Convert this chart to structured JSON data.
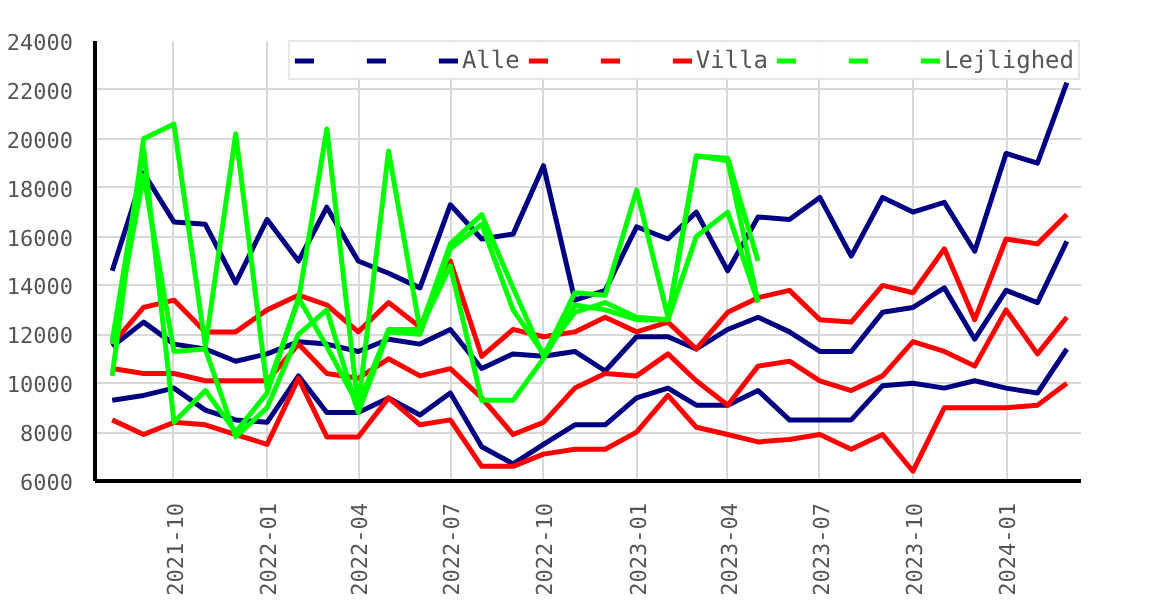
{
  "chart_data": {
    "type": "line",
    "x": [
      "2021-08",
      "2021-09",
      "2021-10",
      "2021-11",
      "2021-12",
      "2022-01",
      "2022-02",
      "2022-03",
      "2022-04",
      "2022-05",
      "2022-06",
      "2022-07",
      "2022-08",
      "2022-09",
      "2022-10",
      "2022-11",
      "2022-12",
      "2023-01",
      "2023-02",
      "2023-03",
      "2023-04",
      "2023-05",
      "2023-06",
      "2023-07",
      "2023-08",
      "2023-09",
      "2023-10",
      "2023-11",
      "2023-12",
      "2024-01",
      "2024-02",
      "2024-03"
    ],
    "series": [
      {
        "color": "#000080",
        "values": [
          9300,
          9500,
          9800,
          8900,
          8500,
          8400,
          10300,
          8800,
          8800,
          9400,
          8700,
          9600,
          7400,
          6700,
          7500,
          8300,
          8300,
          9400,
          9800,
          9100,
          9100,
          9700,
          8500,
          8500,
          8500,
          9900,
          10000,
          9800,
          10100,
          9800,
          9600,
          11400
        ]
      },
      {
        "color": "#000080",
        "values": [
          14600,
          18600,
          16600,
          16500,
          14100,
          16700,
          15000,
          17200,
          15000,
          14500,
          13900,
          17300,
          15900,
          16100,
          18900,
          13400,
          13800,
          16400,
          15900,
          17000,
          14600,
          16800,
          16700,
          17600,
          15200,
          17600,
          17000,
          17400,
          15400,
          19400,
          19000,
          22300
        ]
      },
      {
        "name": "Alle",
        "color": "#000080",
        "values": [
          11500,
          12500,
          11600,
          11400,
          10900,
          11200,
          11700,
          11600,
          11300,
          11800,
          11600,
          12200,
          10600,
          11200,
          11100,
          11300,
          10500,
          11900,
          11900,
          11400,
          12200,
          12700,
          12100,
          11300,
          11300,
          12900,
          13100,
          13900,
          11800,
          13800,
          13300,
          15800
        ]
      },
      {
        "color": "#ff0000",
        "values": [
          8500,
          7900,
          8400,
          8300,
          7900,
          7500,
          10200,
          7800,
          7800,
          9400,
          8300,
          8500,
          6600,
          6600,
          7100,
          7300,
          7300,
          8000,
          9500,
          8200,
          7900,
          7600,
          7700,
          7900,
          7300,
          7900,
          6400,
          9000,
          9000,
          9000,
          9100,
          10000
        ]
      },
      {
        "color": "#ff0000",
        "values": [
          11600,
          13100,
          13400,
          12100,
          12100,
          13000,
          13600,
          13200,
          12100,
          13300,
          12300,
          15000,
          11100,
          12200,
          11900,
          12100,
          12700,
          12100,
          12500,
          11400,
          12900,
          13500,
          13800,
          12600,
          12500,
          14000,
          13700,
          15500,
          12600,
          15900,
          15700,
          16900
        ]
      },
      {
        "name": "Villa",
        "color": "#ff0000",
        "values": [
          10600,
          10400,
          10400,
          10100,
          10100,
          10100,
          11600,
          10400,
          10200,
          11000,
          10300,
          10600,
          9400,
          7900,
          8400,
          9800,
          10400,
          10300,
          11200,
          10100,
          9100,
          10700,
          10900,
          10100,
          9700,
          10300,
          11700,
          11300,
          10700,
          13000,
          11200,
          12700
        ]
      },
      {
        "color": "#00ff00",
        "values": [
          10300,
          20000,
          20600,
          11500,
          20200,
          9800,
          13400,
          20400,
          9000,
          19500,
          12200,
          15700,
          16900,
          13900,
          11100,
          13700,
          13600,
          17900,
          12700,
          19300,
          19200,
          15000,
          null,
          null,
          null,
          null,
          null,
          null,
          null,
          null,
          null,
          null
        ]
      },
      {
        "color": "#00ff00",
        "values": [
          11700,
          19600,
          8400,
          9700,
          8000,
          9600,
          13500,
          11500,
          9100,
          12200,
          12200,
          14800,
          9300,
          9300,
          11000,
          13200,
          13000,
          12600,
          12600,
          19300,
          19100,
          13300,
          null,
          null,
          null,
          null,
          null,
          null,
          null,
          null,
          null,
          null
        ]
      },
      {
        "name": "Lejlighed",
        "color": "#00ff00",
        "values": [
          11600,
          18500,
          11300,
          11400,
          7800,
          9000,
          12000,
          13000,
          8800,
          12100,
          12000,
          15500,
          16500,
          13000,
          11200,
          12900,
          13300,
          12700,
          12600,
          16000,
          17000,
          13300,
          null,
          null,
          null,
          null,
          null,
          null,
          null,
          null,
          null,
          null
        ]
      }
    ],
    "xlim": [
      "2021-07-15",
      "2024-03-15"
    ],
    "xticks": [
      "2021-10",
      "2022-01",
      "2022-04",
      "2022-07",
      "2022-10",
      "2023-01",
      "2023-04",
      "2023-07",
      "2023-10",
      "2024-01"
    ],
    "ylim": [
      6000,
      24000
    ],
    "yticks": [
      6000,
      8000,
      10000,
      12000,
      14000,
      16000,
      18000,
      20000,
      22000,
      24000
    ],
    "grid": true,
    "legend": "top right",
    "line_style": "solid"
  }
}
